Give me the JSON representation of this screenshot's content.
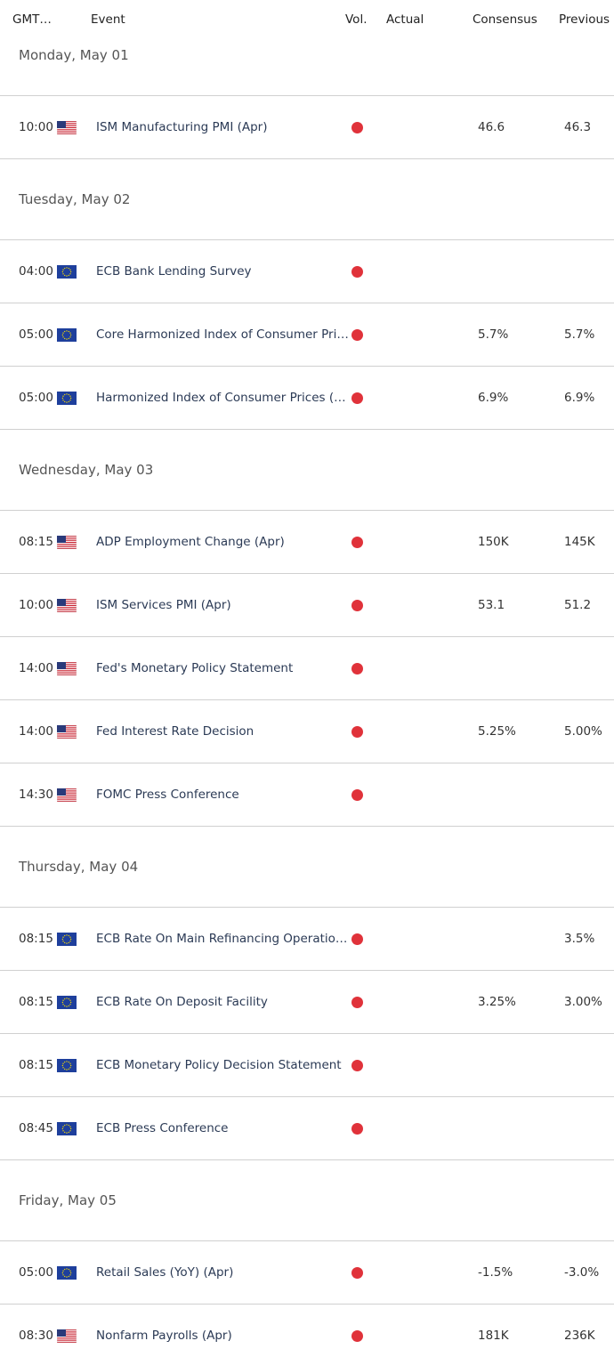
{
  "header": {
    "columns": [
      "GMT…",
      "Event",
      "Vol.",
      "Actual",
      "Consensus",
      "Previous"
    ]
  },
  "days": [
    {
      "label": "Monday, May 01",
      "events": [
        {
          "time": "10:00",
          "flag": "us",
          "event": "ISM Manufacturing PMI (Apr)",
          "consensus": "46.6",
          "previous": "46.3"
        }
      ]
    },
    {
      "label": "Tuesday, May 02",
      "events": [
        {
          "time": "04:00",
          "flag": "eu",
          "event": "ECB Bank Lending Survey"
        },
        {
          "time": "05:00",
          "flag": "eu",
          "event": "Core Harmonized Index of Consumer Pri…",
          "consensus": "5.7%",
          "previous": "5.7%"
        },
        {
          "time": "05:00",
          "flag": "eu",
          "event": "Harmonized Index of Consumer Prices (…",
          "consensus": "6.9%",
          "previous": "6.9%"
        }
      ]
    },
    {
      "label": "Wednesday, May 03",
      "events": [
        {
          "time": "08:15",
          "flag": "us",
          "event": "ADP Employment Change (Apr)",
          "consensus": "150K",
          "previous": "145K"
        },
        {
          "time": "10:00",
          "flag": "us",
          "event": "ISM Services PMI (Apr)",
          "consensus": "53.1",
          "previous": "51.2"
        },
        {
          "time": "14:00",
          "flag": "us",
          "event": "Fed's Monetary Policy Statement"
        },
        {
          "time": "14:00",
          "flag": "us",
          "event": "Fed Interest Rate Decision",
          "consensus": "5.25%",
          "previous": "5.00%"
        },
        {
          "time": "14:30",
          "flag": "us",
          "event": "FOMC Press Conference"
        }
      ]
    },
    {
      "label": "Thursday, May 04",
      "events": [
        {
          "time": "08:15",
          "flag": "eu",
          "event": "ECB Rate On Main Refinancing Operatio…",
          "previous": "3.5%"
        },
        {
          "time": "08:15",
          "flag": "eu",
          "event": "ECB Rate On Deposit Facility",
          "consensus": "3.25%",
          "previous": "3.00%"
        },
        {
          "time": "08:15",
          "flag": "eu",
          "event": "ECB Monetary Policy Decision Statement"
        },
        {
          "time": "08:45",
          "flag": "eu",
          "event": "ECB Press Conference"
        }
      ]
    },
    {
      "label": "Friday, May 05",
      "events": [
        {
          "time": "05:00",
          "flag": "eu",
          "event": "Retail Sales (YoY) (Apr)",
          "consensus": "-1.5%",
          "previous": "-3.0%"
        },
        {
          "time": "08:30",
          "flag": "us",
          "event": "Nonfarm Payrolls (Apr)",
          "consensus": "181K",
          "previous": "236K"
        }
      ]
    }
  ]
}
